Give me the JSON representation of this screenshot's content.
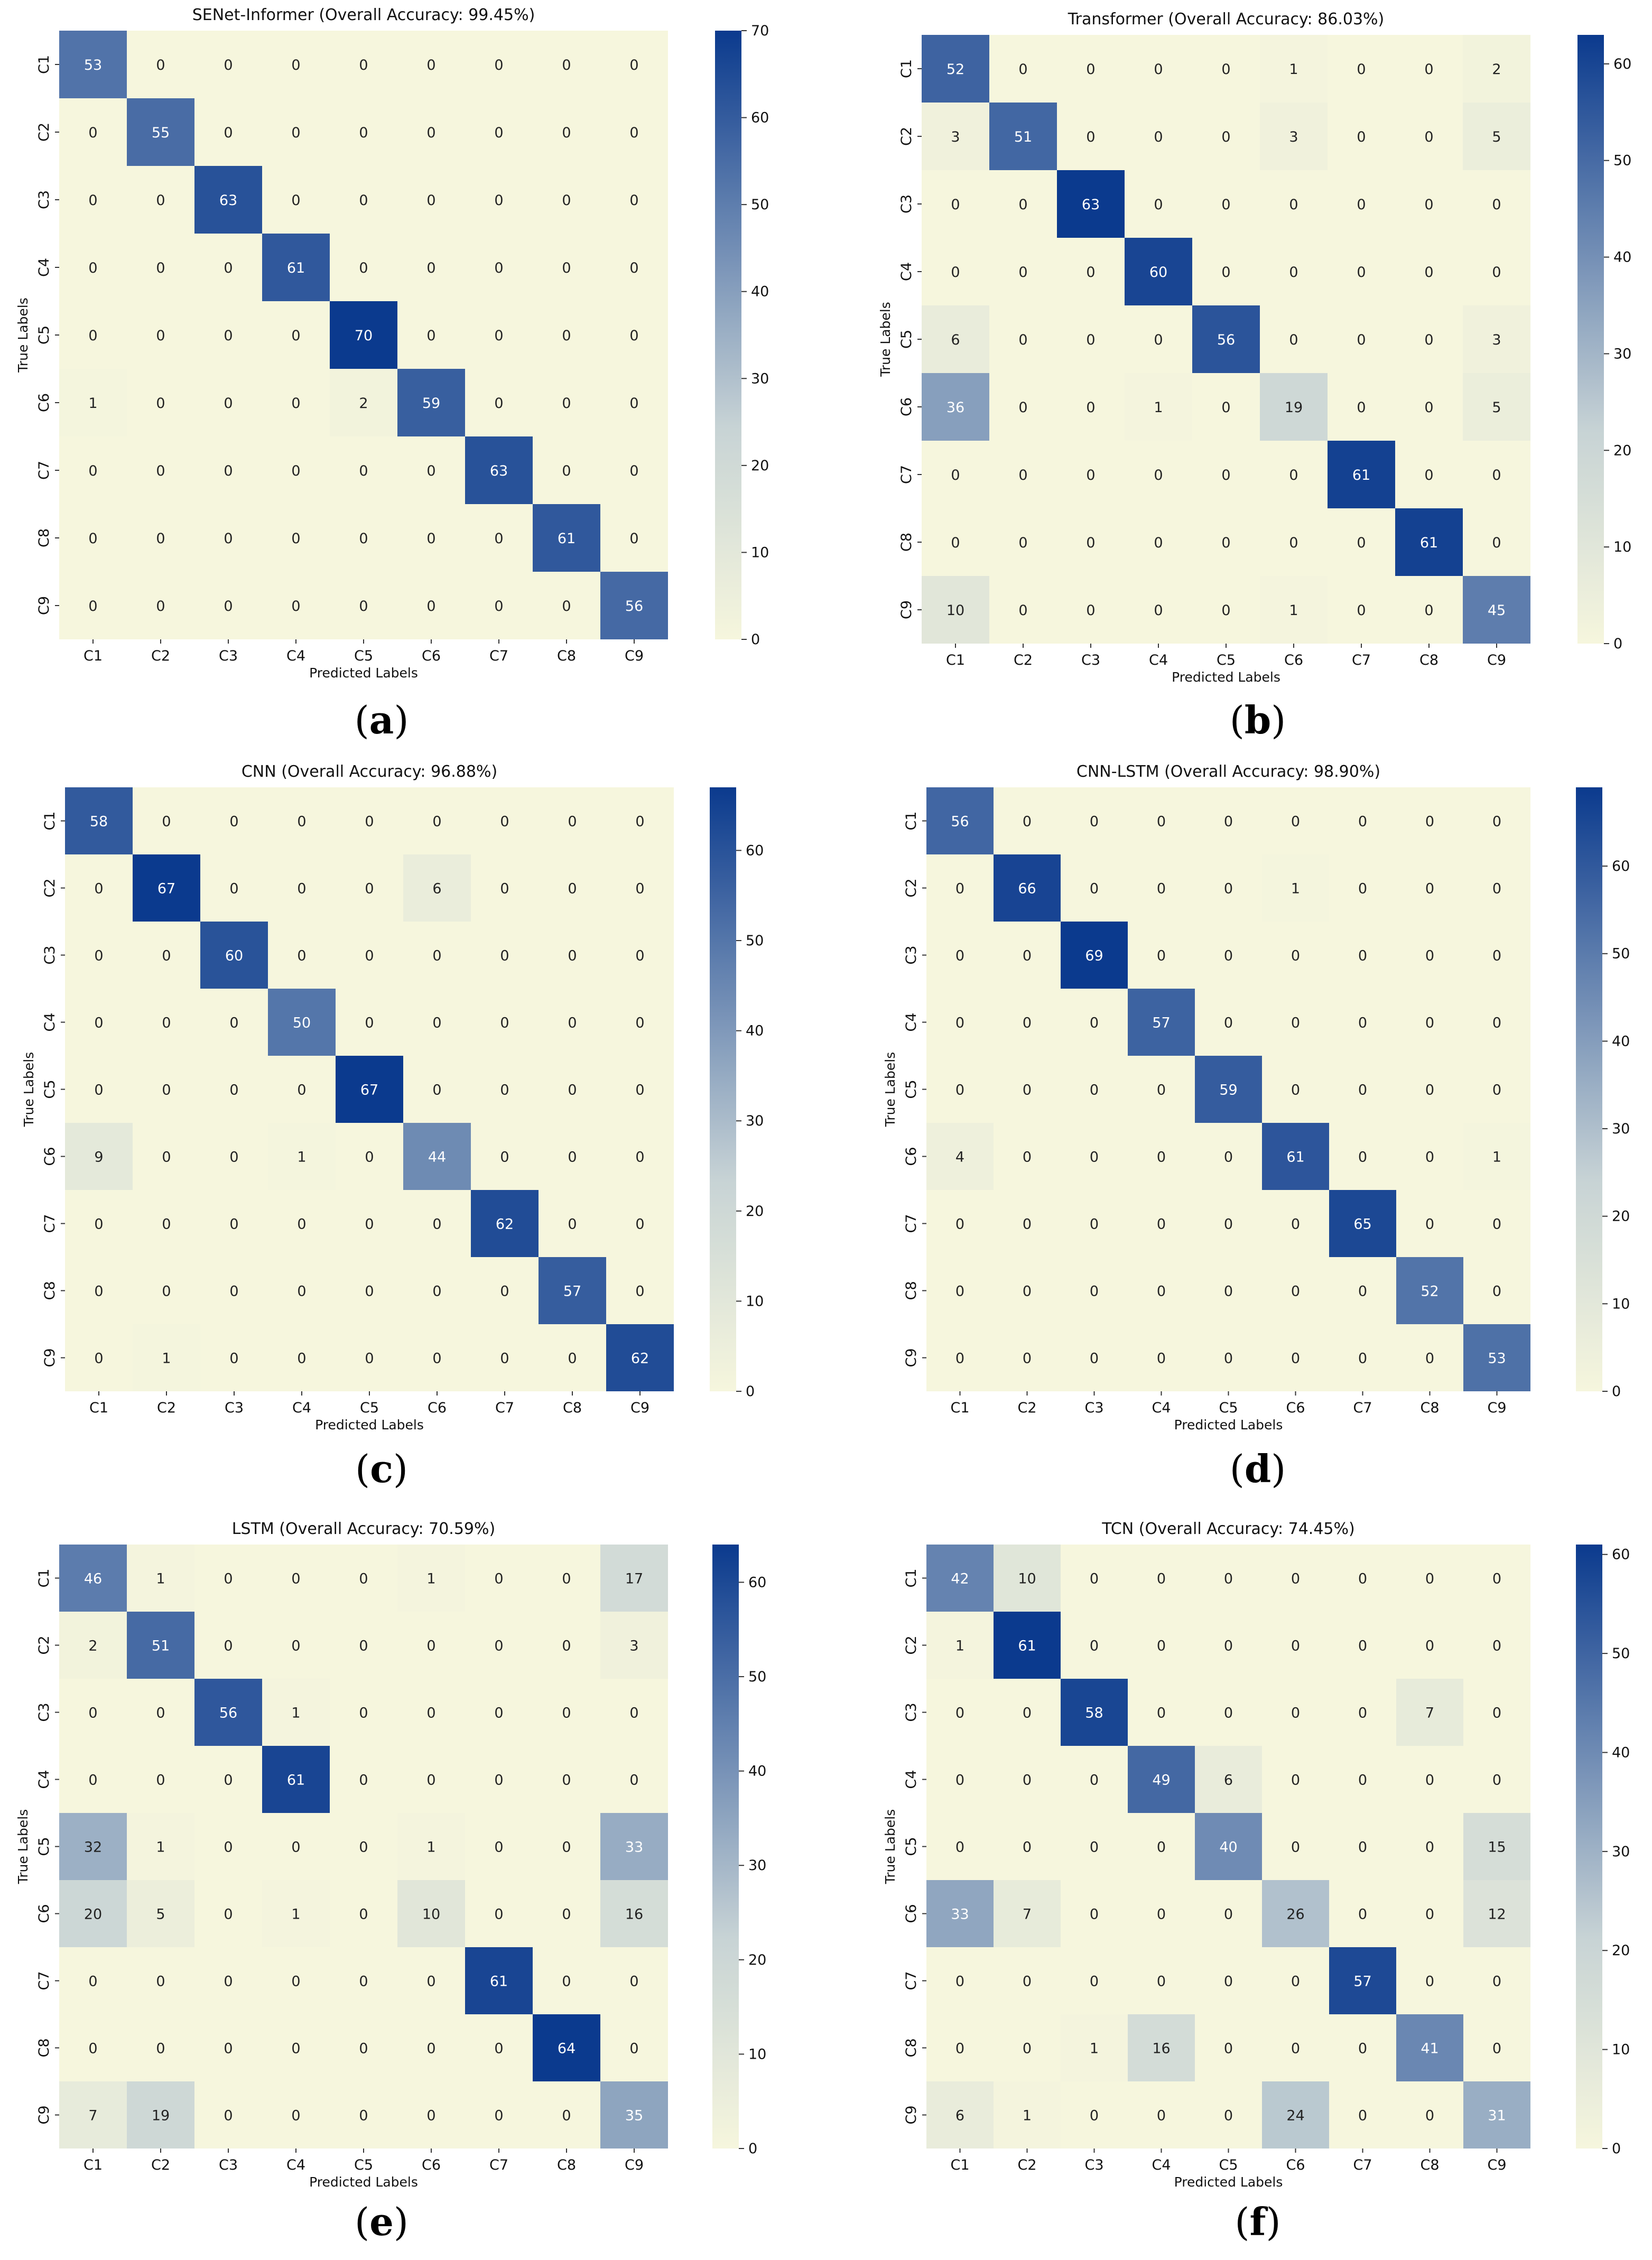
{
  "chart_data": [
    {
      "type": "heatmap",
      "panel": "(a)",
      "title": "SENet-Informer (Overall Accuracy: 99.45%)",
      "xlabel": "Predicted Labels",
      "ylabel": "True Labels",
      "x_categories": [
        "C1",
        "C2",
        "C3",
        "C4",
        "C5",
        "C6",
        "C7",
        "C8",
        "C9"
      ],
      "y_categories": [
        "C1",
        "C2",
        "C3",
        "C4",
        "C5",
        "C6",
        "C7",
        "C8",
        "C9"
      ],
      "matrix": [
        [
          53,
          0,
          0,
          0,
          0,
          0,
          0,
          0,
          0
        ],
        [
          0,
          55,
          0,
          0,
          0,
          0,
          0,
          0,
          0
        ],
        [
          0,
          0,
          63,
          0,
          0,
          0,
          0,
          0,
          0
        ],
        [
          0,
          0,
          0,
          61,
          0,
          0,
          0,
          0,
          0
        ],
        [
          0,
          0,
          0,
          0,
          70,
          0,
          0,
          0,
          0
        ],
        [
          1,
          0,
          0,
          0,
          2,
          59,
          0,
          0,
          0
        ],
        [
          0,
          0,
          0,
          0,
          0,
          0,
          63,
          0,
          0
        ],
        [
          0,
          0,
          0,
          0,
          0,
          0,
          0,
          61,
          0
        ],
        [
          0,
          0,
          0,
          0,
          0,
          0,
          0,
          0,
          56
        ]
      ],
      "colorbar": {
        "min": 0,
        "max": 70,
        "ticks": [
          0,
          10,
          20,
          30,
          40,
          50,
          60,
          70
        ]
      }
    },
    {
      "type": "heatmap",
      "panel": "(b)",
      "title": "Transformer (Overall Accuracy: 86.03%)",
      "xlabel": "Predicted Labels",
      "ylabel": "True Labels",
      "x_categories": [
        "C1",
        "C2",
        "C3",
        "C4",
        "C5",
        "C6",
        "C7",
        "C8",
        "C9"
      ],
      "y_categories": [
        "C1",
        "C2",
        "C3",
        "C4",
        "C5",
        "C6",
        "C7",
        "C8",
        "C9"
      ],
      "matrix": [
        [
          52,
          0,
          0,
          0,
          0,
          1,
          0,
          0,
          2
        ],
        [
          3,
          51,
          0,
          0,
          0,
          3,
          0,
          0,
          5
        ],
        [
          0,
          0,
          63,
          0,
          0,
          0,
          0,
          0,
          0
        ],
        [
          0,
          0,
          0,
          60,
          0,
          0,
          0,
          0,
          0
        ],
        [
          6,
          0,
          0,
          0,
          56,
          0,
          0,
          0,
          3
        ],
        [
          36,
          0,
          0,
          1,
          0,
          19,
          0,
          0,
          5
        ],
        [
          0,
          0,
          0,
          0,
          0,
          0,
          61,
          0,
          0
        ],
        [
          0,
          0,
          0,
          0,
          0,
          0,
          0,
          61,
          0
        ],
        [
          10,
          0,
          0,
          0,
          0,
          1,
          0,
          0,
          45
        ]
      ],
      "colorbar": {
        "min": 0,
        "max": 63,
        "ticks": [
          0,
          10,
          20,
          30,
          40,
          50,
          60
        ]
      }
    },
    {
      "type": "heatmap",
      "panel": "(c)",
      "title": "CNN (Overall Accuracy: 96.88%)",
      "xlabel": "Predicted Labels",
      "ylabel": "True Labels",
      "x_categories": [
        "C1",
        "C2",
        "C3",
        "C4",
        "C5",
        "C6",
        "C7",
        "C8",
        "C9"
      ],
      "y_categories": [
        "C1",
        "C2",
        "C3",
        "C4",
        "C5",
        "C6",
        "C7",
        "C8",
        "C9"
      ],
      "matrix": [
        [
          58,
          0,
          0,
          0,
          0,
          0,
          0,
          0,
          0
        ],
        [
          0,
          67,
          0,
          0,
          0,
          6,
          0,
          0,
          0
        ],
        [
          0,
          0,
          60,
          0,
          0,
          0,
          0,
          0,
          0
        ],
        [
          0,
          0,
          0,
          50,
          0,
          0,
          0,
          0,
          0
        ],
        [
          0,
          0,
          0,
          0,
          67,
          0,
          0,
          0,
          0
        ],
        [
          9,
          0,
          0,
          1,
          0,
          44,
          0,
          0,
          0
        ],
        [
          0,
          0,
          0,
          0,
          0,
          0,
          62,
          0,
          0
        ],
        [
          0,
          0,
          0,
          0,
          0,
          0,
          0,
          57,
          0
        ],
        [
          0,
          1,
          0,
          0,
          0,
          0,
          0,
          0,
          62
        ]
      ],
      "colorbar": {
        "min": 0,
        "max": 67,
        "ticks": [
          0,
          10,
          20,
          30,
          40,
          50,
          60
        ]
      }
    },
    {
      "type": "heatmap",
      "panel": "(d)",
      "title": "CNN-LSTM (Overall Accuracy: 98.90%)",
      "xlabel": "Predicted Labels",
      "ylabel": "True Labels",
      "x_categories": [
        "C1",
        "C2",
        "C3",
        "C4",
        "C5",
        "C6",
        "C7",
        "C8",
        "C9"
      ],
      "y_categories": [
        "C1",
        "C2",
        "C3",
        "C4",
        "C5",
        "C6",
        "C7",
        "C8",
        "C9"
      ],
      "matrix": [
        [
          56,
          0,
          0,
          0,
          0,
          0,
          0,
          0,
          0
        ],
        [
          0,
          66,
          0,
          0,
          0,
          1,
          0,
          0,
          0
        ],
        [
          0,
          0,
          69,
          0,
          0,
          0,
          0,
          0,
          0
        ],
        [
          0,
          0,
          0,
          57,
          0,
          0,
          0,
          0,
          0
        ],
        [
          0,
          0,
          0,
          0,
          59,
          0,
          0,
          0,
          0
        ],
        [
          4,
          0,
          0,
          0,
          0,
          61,
          0,
          0,
          1
        ],
        [
          0,
          0,
          0,
          0,
          0,
          0,
          65,
          0,
          0
        ],
        [
          0,
          0,
          0,
          0,
          0,
          0,
          0,
          52,
          0
        ],
        [
          0,
          0,
          0,
          0,
          0,
          0,
          0,
          0,
          53
        ]
      ],
      "colorbar": {
        "min": 0,
        "max": 69,
        "ticks": [
          0,
          10,
          20,
          30,
          40,
          50,
          60
        ]
      }
    },
    {
      "type": "heatmap",
      "panel": "(e)",
      "title": "LSTM (Overall Accuracy: 70.59%)",
      "xlabel": "Predicted Labels",
      "ylabel": "True Labels",
      "x_categories": [
        "C1",
        "C2",
        "C3",
        "C4",
        "C5",
        "C6",
        "C7",
        "C8",
        "C9"
      ],
      "y_categories": [
        "C1",
        "C2",
        "C3",
        "C4",
        "C5",
        "C6",
        "C7",
        "C8",
        "C9"
      ],
      "matrix": [
        [
          46,
          1,
          0,
          0,
          0,
          1,
          0,
          0,
          17
        ],
        [
          2,
          51,
          0,
          0,
          0,
          0,
          0,
          0,
          3
        ],
        [
          0,
          0,
          56,
          1,
          0,
          0,
          0,
          0,
          0
        ],
        [
          0,
          0,
          0,
          61,
          0,
          0,
          0,
          0,
          0
        ],
        [
          32,
          1,
          0,
          0,
          0,
          1,
          0,
          0,
          33
        ],
        [
          20,
          5,
          0,
          1,
          0,
          10,
          0,
          0,
          16
        ],
        [
          0,
          0,
          0,
          0,
          0,
          0,
          61,
          0,
          0
        ],
        [
          0,
          0,
          0,
          0,
          0,
          0,
          0,
          64,
          0
        ],
        [
          7,
          19,
          0,
          0,
          0,
          0,
          0,
          0,
          35
        ]
      ],
      "colorbar": {
        "min": 0,
        "max": 64,
        "ticks": [
          0,
          10,
          20,
          30,
          40,
          50,
          60
        ]
      }
    },
    {
      "type": "heatmap",
      "panel": "(f)",
      "title": "TCN (Overall Accuracy: 74.45%)",
      "xlabel": "Predicted Labels",
      "ylabel": "True Labels",
      "x_categories": [
        "C1",
        "C2",
        "C3",
        "C4",
        "C5",
        "C6",
        "C7",
        "C8",
        "C9"
      ],
      "y_categories": [
        "C1",
        "C2",
        "C3",
        "C4",
        "C5",
        "C6",
        "C7",
        "C8",
        "C9"
      ],
      "matrix": [
        [
          42,
          10,
          0,
          0,
          0,
          0,
          0,
          0,
          0
        ],
        [
          1,
          61,
          0,
          0,
          0,
          0,
          0,
          0,
          0
        ],
        [
          0,
          0,
          58,
          0,
          0,
          0,
          0,
          7,
          0
        ],
        [
          0,
          0,
          0,
          49,
          6,
          0,
          0,
          0,
          0
        ],
        [
          0,
          0,
          0,
          0,
          40,
          0,
          0,
          0,
          15
        ],
        [
          33,
          7,
          0,
          0,
          0,
          26,
          0,
          0,
          12
        ],
        [
          0,
          0,
          0,
          0,
          0,
          0,
          57,
          0,
          0
        ],
        [
          0,
          0,
          1,
          16,
          0,
          0,
          0,
          41,
          0
        ],
        [
          6,
          1,
          0,
          0,
          0,
          24,
          0,
          0,
          31
        ]
      ],
      "colorbar": {
        "min": 0,
        "max": 61,
        "ticks": [
          0,
          10,
          20,
          30,
          40,
          50,
          60
        ]
      }
    }
  ],
  "colorscale": {
    "low": "#f6f6dd",
    "mid": "#c7d3d5",
    "high": "#0b3a8e",
    "text_light": "#ffffff",
    "text_dark": "#222222"
  }
}
